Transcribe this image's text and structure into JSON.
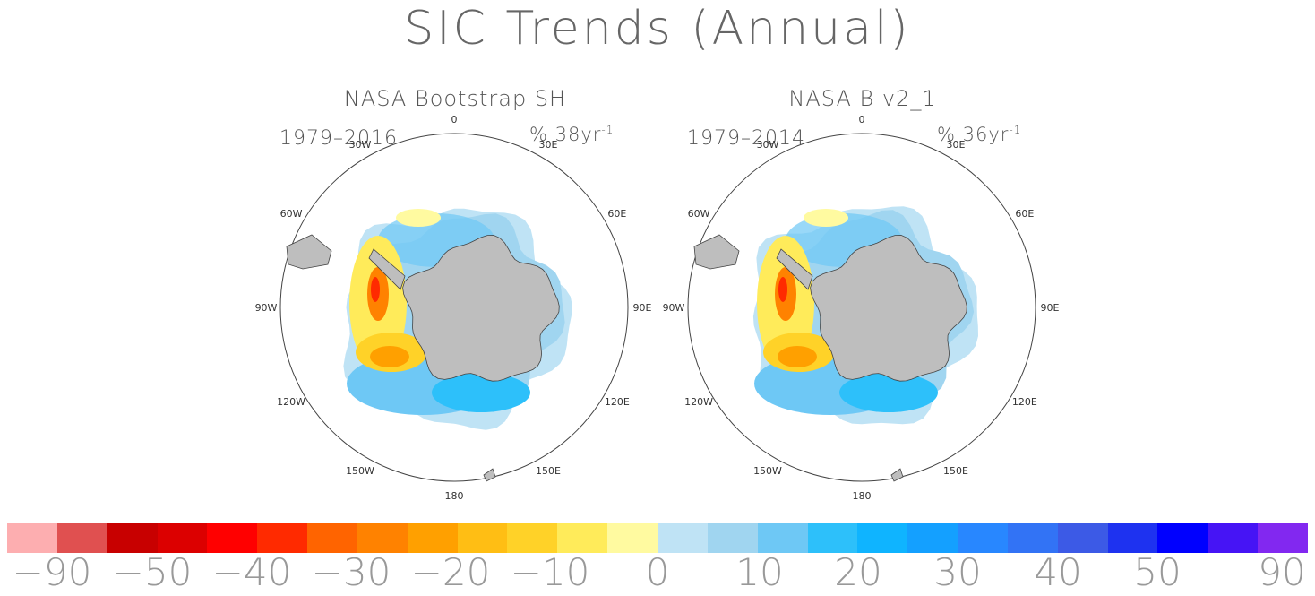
{
  "title": "SIC Trends (Annual)",
  "panels": [
    {
      "title": "NASA Bootstrap SH",
      "period": "1979–2016",
      "units": "% 38yr",
      "units_exp": "-1",
      "labels": {
        "top": "0",
        "tr": "30E",
        "r1": "60E",
        "r": "90E",
        "r2": "120E",
        "br": "150E",
        "bottom": "180",
        "bl": "150W",
        "l2": "120W",
        "l": "90W",
        "l1": "60W",
        "tl": "30W"
      }
    },
    {
      "title": "NASA B v2_1",
      "period": "1979–2014",
      "units": "% 36yr",
      "units_exp": "-1",
      "labels": {
        "top": "0",
        "tr": "30E",
        "r1": "60E",
        "r": "90E",
        "r2": "120E",
        "br": "150E",
        "bottom": "180",
        "bl": "150W",
        "l2": "120W",
        "l": "90W",
        "l1": "60W",
        "tl": "30W"
      }
    }
  ],
  "colorbar": {
    "colors": [
      "#fdaeb0",
      "#e05050",
      "#c80000",
      "#dc0000",
      "#ff0000",
      "#ff2a00",
      "#ff6400",
      "#ff8200",
      "#ffa000",
      "#ffbe14",
      "#ffd228",
      "#ffeb5a",
      "#fffaa0",
      "#bfe3f5",
      "#a0d5f0",
      "#6ec8f5",
      "#2dc0fa",
      "#0fb4ff",
      "#14a0ff",
      "#2887ff",
      "#3273f5",
      "#3c5ae6",
      "#1e32f0",
      "#0000ff",
      "#4614f5",
      "#8228f0"
    ],
    "labels": [
      "−90",
      "−50",
      "−40",
      "−30",
      "−20",
      "−10",
      "0",
      "10",
      "20",
      "30",
      "40",
      "50",
      "90"
    ]
  },
  "colors": {
    "land": "#bebebe",
    "coast": "#444444"
  }
}
